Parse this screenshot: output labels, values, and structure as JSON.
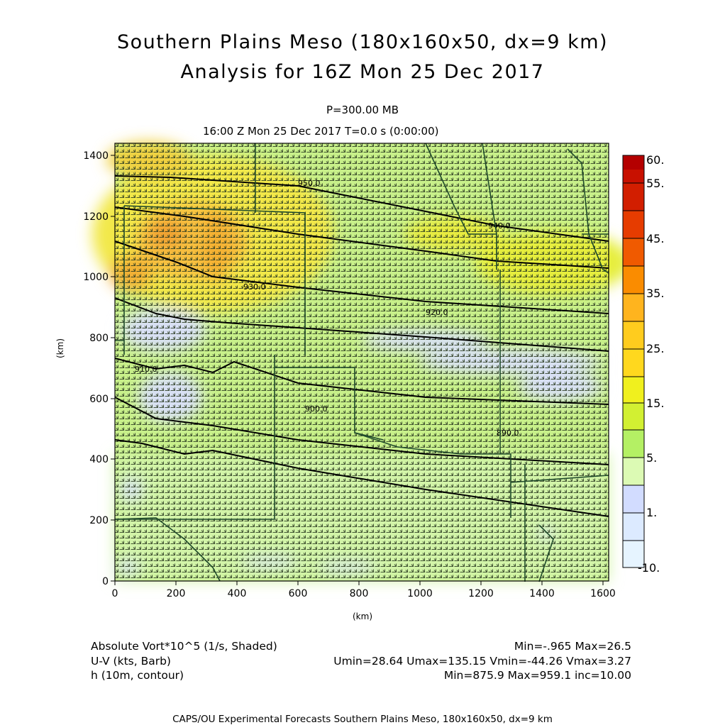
{
  "title": {
    "line1": "Southern Plains Meso (180x160x50, dx=9 km)",
    "line2": "Analysis for 16Z Mon 25 Dec 2017"
  },
  "subtitle": {
    "level": "P=300.00 MB",
    "time": "16:00 Z Mon 25 Dec 2017    T=0.0 s (0:00:00)"
  },
  "axes": {
    "xlabel": "(km)",
    "ylabel": "(km)",
    "xticks": [
      "0",
      "200",
      "400",
      "600",
      "800",
      "1000",
      "1200",
      "1400",
      "1600"
    ],
    "yticks": [
      "0",
      "200",
      "400",
      "600",
      "800",
      "1000",
      "1200",
      "1400"
    ]
  },
  "colorbar": {
    "labels": [
      "60.",
      "55.",
      "45.",
      "35.",
      "25.",
      "15.",
      "5.",
      "1.",
      "-10."
    ],
    "colors": [
      "#b40000",
      "#d21e00",
      "#e63c00",
      "#f05a00",
      "#fa8c00",
      "#ffcc1e",
      "#f0f01e",
      "#d2f032",
      "#b4f064",
      "#dcfab4",
      "#d2dcff",
      "#dceaff",
      "#e6f4ff"
    ]
  },
  "legend": {
    "field1": "Absolute Vort*10^5 (1/s, Shaded)",
    "field1_stats": "Min=-.965 Max=26.5",
    "field2": "U-V (kts, Barb)",
    "field2_stats": "Umin=28.64 Umax=135.15 Vmin=-44.26 Vmax=3.27",
    "field3": "h (10m, contour)",
    "field3_stats": "Min=875.9 Max=959.1 inc=10.00"
  },
  "footer": "CAPS/OU Experimental Forecasts   Southern Plains Meso, 180x160x50, dx=9 km",
  "contours": [
    "950.0",
    "940.0",
    "930.0",
    "920.0",
    "910.0",
    "900.0",
    "890.0"
  ],
  "map_data": {
    "domain_km": {
      "x": [
        0,
        1620
      ],
      "y": [
        0,
        1440
      ]
    },
    "field": "absolute vorticity",
    "level": "300 MB"
  }
}
